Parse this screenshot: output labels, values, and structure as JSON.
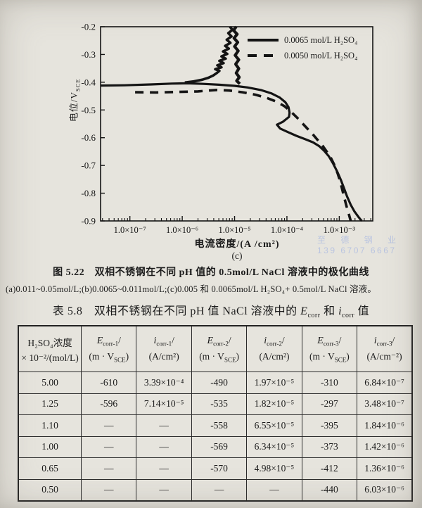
{
  "page": {
    "background": "#e6e4dd",
    "ink": "#1b1b1b",
    "watermark_color": "#b5c1e1"
  },
  "figure": {
    "caption_line1": "图 5.22　双相不锈钢在不同 pH 值的 0.5mol/L NaCl 溶液中的极化曲线",
    "caption_line2": "(a)0.011~0.05mol/L;(b)0.0065~0.011mol/L;(c)0.005 和 0.0065mol/L H₂SO₄+ 0.5mol/L NaCl 溶液。",
    "sub_label": "(c)",
    "y_axis_title_main": "电位/V",
    "y_axis_title_sub": "SCE",
    "x_axis_title": "电流密度/(A /cm²)"
  },
  "watermark": {
    "line1": "至 德 钢 业",
    "line2": "139 6707 6667"
  },
  "chart_data": {
    "type": "line",
    "title": "",
    "xlabel": "电流密度/(A /cm²)",
    "ylabel": "电位/V_SCE",
    "x_scale": "log10",
    "xlim_log": [
      -7.56,
      -2.36
    ],
    "ylim": [
      -0.9,
      -0.2
    ],
    "grid": false,
    "legend_position": "top-right",
    "x_tick_decades": [
      -7,
      -6,
      -5,
      -4,
      -3
    ],
    "x_tick_labels": [
      "1.0×10⁻⁷",
      "1.0×10⁻⁶",
      "1.0×10⁻⁵",
      "1.0×10⁻⁴",
      "1.0×10⁻³"
    ],
    "y_ticks": [
      -0.2,
      -0.3,
      -0.4,
      -0.5,
      -0.6,
      -0.7,
      -0.8,
      -0.9
    ],
    "legend": [
      {
        "label": "0.0065 mol/L H₂SO₄",
        "style": "solid"
      },
      {
        "label": "0.0050 mol/L H₂SO₄",
        "style": "dashed"
      }
    ],
    "series": [
      {
        "name": "0.0065 mol/L H2SO4 cathodic branch",
        "style": "solid",
        "width": 3.2,
        "points": [
          [
            -7.56,
            -0.412
          ],
          [
            -7.1,
            -0.411
          ],
          [
            -6.6,
            -0.408
          ],
          [
            -6.2,
            -0.405
          ],
          [
            -5.9,
            -0.404
          ],
          [
            -5.6,
            -0.406
          ],
          [
            -5.3,
            -0.409
          ],
          [
            -5.0,
            -0.413
          ],
          [
            -4.75,
            -0.419
          ],
          [
            -4.5,
            -0.428
          ],
          [
            -4.3,
            -0.44
          ],
          [
            -4.14,
            -0.455
          ],
          [
            -4.03,
            -0.472
          ],
          [
            -3.97,
            -0.49
          ],
          [
            -3.95,
            -0.51
          ],
          [
            -3.96,
            -0.525
          ],
          [
            -4.08,
            -0.543
          ],
          [
            -4.19,
            -0.553
          ],
          [
            -4.13,
            -0.567
          ],
          [
            -3.99,
            -0.579
          ],
          [
            -3.82,
            -0.593
          ],
          [
            -3.64,
            -0.606
          ],
          [
            -3.5,
            -0.617
          ],
          [
            -3.38,
            -0.631
          ],
          [
            -3.29,
            -0.647
          ],
          [
            -3.2,
            -0.667
          ],
          [
            -3.12,
            -0.692
          ],
          [
            -3.04,
            -0.722
          ],
          [
            -2.97,
            -0.752
          ],
          [
            -2.91,
            -0.782
          ],
          [
            -2.85,
            -0.812
          ],
          [
            -2.78,
            -0.842
          ],
          [
            -2.71,
            -0.866
          ],
          [
            -2.64,
            -0.884
          ],
          [
            -2.59,
            -0.896
          ],
          [
            -2.57,
            -0.9
          ]
        ]
      },
      {
        "name": "0.0065 mol/L H2SO4 anodic rise (noisy)",
        "style": "solid",
        "width": 3.6,
        "points": [
          [
            -5.95,
            -0.401
          ],
          [
            -5.78,
            -0.397
          ],
          [
            -5.62,
            -0.391
          ],
          [
            -5.5,
            -0.384
          ],
          [
            -5.41,
            -0.376
          ],
          [
            -5.34,
            -0.367
          ],
          [
            -5.29,
            -0.359
          ],
          [
            -5.37,
            -0.353
          ],
          [
            -5.25,
            -0.346
          ],
          [
            -5.33,
            -0.339
          ],
          [
            -5.21,
            -0.331
          ],
          [
            -5.29,
            -0.323
          ],
          [
            -5.17,
            -0.315
          ],
          [
            -5.25,
            -0.307
          ],
          [
            -5.14,
            -0.298
          ],
          [
            -5.22,
            -0.289
          ],
          [
            -5.11,
            -0.279
          ],
          [
            -5.18,
            -0.269
          ],
          [
            -5.08,
            -0.258
          ],
          [
            -5.15,
            -0.247
          ],
          [
            -5.06,
            -0.235
          ],
          [
            -5.12,
            -0.223
          ],
          [
            -5.04,
            -0.211
          ],
          [
            -5.09,
            -0.2
          ]
        ]
      },
      {
        "name": "0.0065 mol/L H2SO4 vertical noise band",
        "style": "solid",
        "width": 4.2,
        "points": [
          [
            -4.97,
            -0.2
          ],
          [
            -5.02,
            -0.213
          ],
          [
            -4.95,
            -0.227
          ],
          [
            -5.01,
            -0.241
          ],
          [
            -4.94,
            -0.256
          ],
          [
            -5.0,
            -0.271
          ],
          [
            -4.93,
            -0.287
          ],
          [
            -4.99,
            -0.303
          ],
          [
            -4.92,
            -0.319
          ],
          [
            -4.98,
            -0.335
          ],
          [
            -4.92,
            -0.351
          ],
          [
            -4.97,
            -0.367
          ],
          [
            -4.91,
            -0.382
          ],
          [
            -4.96,
            -0.395
          ],
          [
            -4.9,
            -0.406
          ]
        ]
      },
      {
        "name": "0.0050 mol/L H2SO4",
        "style": "dashed",
        "width": 3.6,
        "points": [
          [
            -6.9,
            -0.436
          ],
          [
            -6.5,
            -0.437
          ],
          [
            -6.1,
            -0.435
          ],
          [
            -5.7,
            -0.433
          ],
          [
            -5.35,
            -0.428
          ],
          [
            -5.1,
            -0.43
          ],
          [
            -4.85,
            -0.436
          ],
          [
            -4.6,
            -0.445
          ],
          [
            -4.38,
            -0.457
          ],
          [
            -4.2,
            -0.47
          ],
          [
            -4.05,
            -0.486
          ],
          [
            -3.93,
            -0.505
          ],
          [
            -3.81,
            -0.527
          ],
          [
            -3.7,
            -0.549
          ],
          [
            -3.6,
            -0.569
          ],
          [
            -3.5,
            -0.589
          ],
          [
            -3.41,
            -0.609
          ],
          [
            -3.32,
            -0.629
          ],
          [
            -3.24,
            -0.65
          ],
          [
            -3.16,
            -0.673
          ],
          [
            -3.09,
            -0.7
          ],
          [
            -3.03,
            -0.729
          ],
          [
            -2.98,
            -0.759
          ],
          [
            -2.94,
            -0.789
          ],
          [
            -2.9,
            -0.819
          ],
          [
            -2.86,
            -0.848
          ],
          [
            -2.82,
            -0.874
          ],
          [
            -2.79,
            -0.894
          ],
          [
            -2.78,
            -0.9
          ]
        ]
      }
    ]
  },
  "table": {
    "title": {
      "pre": "表 5.8　双相不锈钢在不同 pH 值 NaCl 溶液中的 ",
      "e_sym": "E",
      "e_sub": "corr",
      "mid": " 和 ",
      "i_sym": "i",
      "i_sub": "corr",
      "post": " 值"
    },
    "headers": [
      {
        "line1": "H₂SO₄浓度",
        "line2": "× 10⁻²/(mol/L)"
      },
      {
        "sym": "E",
        "sub": "corr-1",
        "slash": "/",
        "unit_pre": "(m · V",
        "unit_sub": "SCE",
        "unit_post": ")"
      },
      {
        "sym": "i",
        "sub": "corr-1",
        "slash": "/",
        "unit_pre": "(A/cm²)",
        "unit_sub": "",
        "unit_post": ""
      },
      {
        "sym": "E",
        "sub": "corr-2",
        "slash": "/",
        "unit_pre": "(m · V",
        "unit_sub": "SCE",
        "unit_post": ")"
      },
      {
        "sym": "i",
        "sub": "corr-2",
        "slash": "/",
        "unit_pre": "(A/cm²)",
        "unit_sub": "",
        "unit_post": ""
      },
      {
        "sym": "E",
        "sub": "corr-3",
        "slash": "/",
        "unit_pre": "(m · V",
        "unit_sub": "SCE",
        "unit_post": ")"
      },
      {
        "sym": "i",
        "sub": "corr-3",
        "slash": "/",
        "unit_pre": "(A/cm⁻²)",
        "unit_sub": "",
        "unit_post": ""
      }
    ],
    "rows": [
      [
        "5.00",
        "-610",
        "3.39×10⁻⁴",
        "-490",
        "1.97×10⁻⁵",
        "-310",
        "6.84×10⁻⁷"
      ],
      [
        "1.25",
        "-596",
        "7.14×10⁻⁵",
        "-535",
        "1.82×10⁻⁵",
        "-297",
        "3.48×10⁻⁷"
      ],
      [
        "1.10",
        "—",
        "—",
        "-558",
        "6.55×10⁻⁵",
        "-395",
        "1.84×10⁻⁶"
      ],
      [
        "1.00",
        "—",
        "—",
        "-569",
        "6.34×10⁻⁵",
        "-373",
        "1.42×10⁻⁶"
      ],
      [
        "0.65",
        "—",
        "—",
        "-570",
        "4.98×10⁻⁵",
        "-412",
        "1.36×10⁻⁶"
      ],
      [
        "0.50",
        "—",
        "—",
        "—",
        "—",
        "-440",
        "6.03×10⁻⁶"
      ]
    ]
  }
}
